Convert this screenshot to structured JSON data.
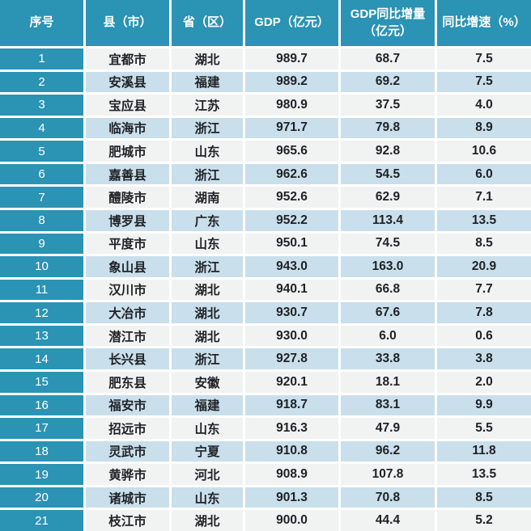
{
  "table": {
    "columns": [
      {
        "label": "序号"
      },
      {
        "label": "县（市）"
      },
      {
        "label": "省（区）"
      },
      {
        "label": "GDP（亿元）"
      },
      {
        "label": "GDP同比增量（亿元）"
      },
      {
        "label": "同比增速（%）"
      }
    ],
    "rows": [
      [
        "1",
        "宜都市",
        "湖北",
        "989.7",
        "68.7",
        "7.5"
      ],
      [
        "2",
        "安溪县",
        "福建",
        "989.2",
        "69.2",
        "7.5"
      ],
      [
        "3",
        "宝应县",
        "江苏",
        "980.9",
        "37.5",
        "4.0"
      ],
      [
        "4",
        "临海市",
        "浙江",
        "971.7",
        "79.8",
        "8.9"
      ],
      [
        "5",
        "肥城市",
        "山东",
        "965.6",
        "92.8",
        "10.6"
      ],
      [
        "6",
        "嘉善县",
        "浙江",
        "962.6",
        "54.5",
        "6.0"
      ],
      [
        "7",
        "醴陵市",
        "湖南",
        "952.6",
        "62.9",
        "7.1"
      ],
      [
        "8",
        "博罗县",
        "广东",
        "952.2",
        "113.4",
        "13.5"
      ],
      [
        "9",
        "平度市",
        "山东",
        "950.1",
        "74.5",
        "8.5"
      ],
      [
        "10",
        "象山县",
        "浙江",
        "943.0",
        "163.0",
        "20.9"
      ],
      [
        "11",
        "汉川市",
        "湖北",
        "940.1",
        "66.8",
        "7.7"
      ],
      [
        "12",
        "大冶市",
        "湖北",
        "930.7",
        "67.6",
        "7.8"
      ],
      [
        "13",
        "潜江市",
        "湖北",
        "930.0",
        "6.0",
        "0.6"
      ],
      [
        "14",
        "长兴县",
        "浙江",
        "927.8",
        "33.8",
        "3.8"
      ],
      [
        "15",
        "肥东县",
        "安徽",
        "920.1",
        "18.1",
        "2.0"
      ],
      [
        "16",
        "福安市",
        "福建",
        "918.7",
        "83.1",
        "9.9"
      ],
      [
        "17",
        "招远市",
        "山东",
        "916.3",
        "47.9",
        "5.5"
      ],
      [
        "18",
        "灵武市",
        "宁夏",
        "910.8",
        "96.2",
        "11.8"
      ],
      [
        "19",
        "黄骅市",
        "河北",
        "908.9",
        "107.8",
        "13.5"
      ],
      [
        "20",
        "诸城市",
        "山东",
        "901.3",
        "70.8",
        "8.5"
      ],
      [
        "21",
        "枝江市",
        "湖北",
        "900.0",
        "44.4",
        "5.2"
      ]
    ]
  },
  "colors": {
    "teal": "#2B93B4",
    "rowLight": "#F1F2F2",
    "rowBlue": "#C9DFEB",
    "text": "#1F2125",
    "headerText": "#FFFFFF",
    "grid": "#FFFFFF"
  },
  "chart_data": {
    "type": "table",
    "columns": [
      "序号",
      "县（市）",
      "省（区）",
      "GDP（亿元）",
      "GDP同比增量（亿元）",
      "同比增速（%）"
    ],
    "rows": [
      [
        1,
        "宜都市",
        "湖北",
        989.7,
        68.7,
        7.5
      ],
      [
        2,
        "安溪县",
        "福建",
        989.2,
        69.2,
        7.5
      ],
      [
        3,
        "宝应县",
        "江苏",
        980.9,
        37.5,
        4.0
      ],
      [
        4,
        "临海市",
        "浙江",
        971.7,
        79.8,
        8.9
      ],
      [
        5,
        "肥城市",
        "山东",
        965.6,
        92.8,
        10.6
      ],
      [
        6,
        "嘉善县",
        "浙江",
        962.6,
        54.5,
        6.0
      ],
      [
        7,
        "醴陵市",
        "湖南",
        952.6,
        62.9,
        7.1
      ],
      [
        8,
        "博罗县",
        "广东",
        952.2,
        113.4,
        13.5
      ],
      [
        9,
        "平度市",
        "山东",
        950.1,
        74.5,
        8.5
      ],
      [
        10,
        "象山县",
        "浙江",
        943.0,
        163.0,
        20.9
      ],
      [
        11,
        "汉川市",
        "湖北",
        940.1,
        66.8,
        7.7
      ],
      [
        12,
        "大冶市",
        "湖北",
        930.7,
        67.6,
        7.8
      ],
      [
        13,
        "潜江市",
        "湖北",
        930.0,
        6.0,
        0.6
      ],
      [
        14,
        "长兴县",
        "浙江",
        927.8,
        33.8,
        3.8
      ],
      [
        15,
        "肥东县",
        "安徽",
        920.1,
        18.1,
        2.0
      ],
      [
        16,
        "福安市",
        "福建",
        918.7,
        83.1,
        9.9
      ],
      [
        17,
        "招远市",
        "山东",
        916.3,
        47.9,
        5.5
      ],
      [
        18,
        "灵武市",
        "宁夏",
        910.8,
        96.2,
        11.8
      ],
      [
        19,
        "黄骅市",
        "河北",
        908.9,
        107.8,
        13.5
      ],
      [
        20,
        "诸城市",
        "山东",
        901.3,
        70.8,
        8.5
      ],
      [
        21,
        "枝江市",
        "湖北",
        900.0,
        44.4,
        5.2
      ]
    ]
  }
}
